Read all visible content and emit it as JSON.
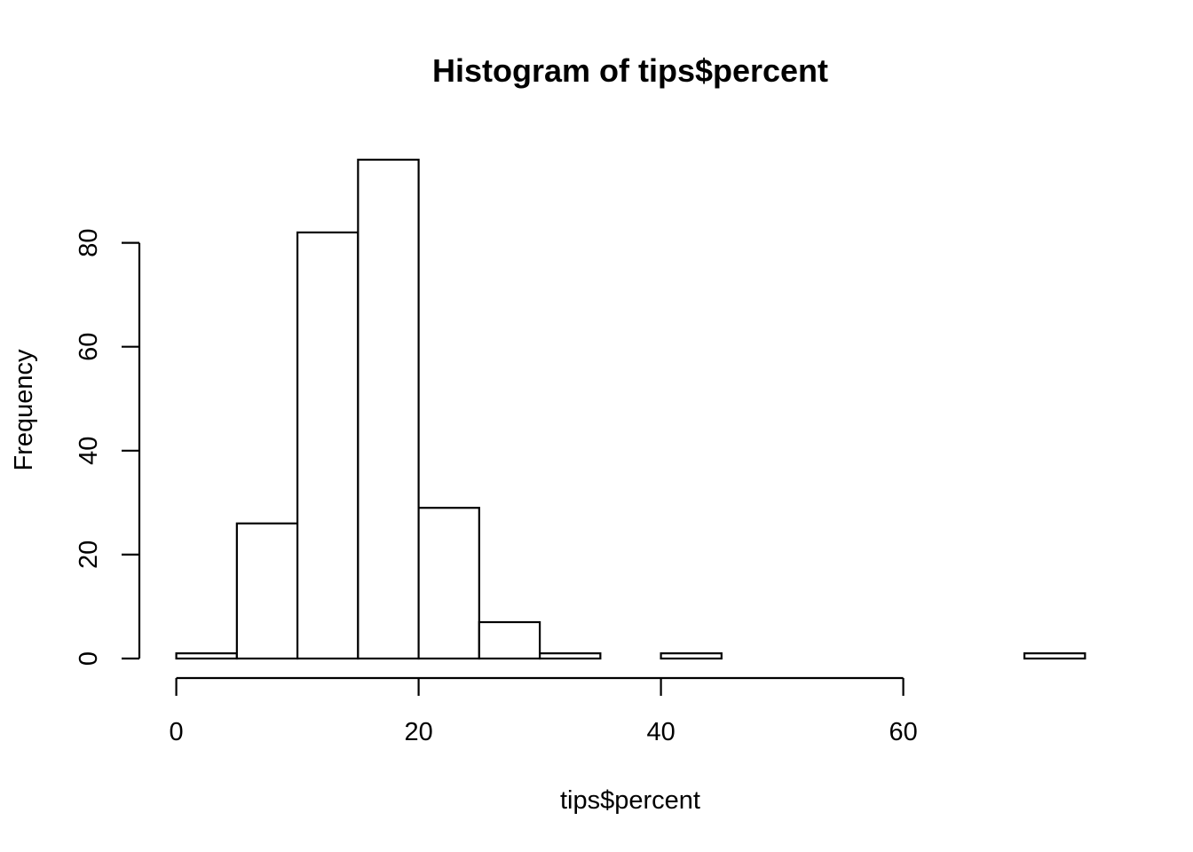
{
  "chart_data": {
    "type": "histogram",
    "title": "Histogram of tips$percent",
    "xlabel": "tips$percent",
    "ylabel": "Frequency",
    "bin_width": 5,
    "bins": [
      {
        "start": 0,
        "end": 5,
        "count": 1
      },
      {
        "start": 5,
        "end": 10,
        "count": 26
      },
      {
        "start": 10,
        "end": 15,
        "count": 82
      },
      {
        "start": 15,
        "end": 20,
        "count": 96
      },
      {
        "start": 20,
        "end": 25,
        "count": 29
      },
      {
        "start": 25,
        "end": 30,
        "count": 7
      },
      {
        "start": 30,
        "end": 35,
        "count": 1
      },
      {
        "start": 35,
        "end": 40,
        "count": 0
      },
      {
        "start": 40,
        "end": 45,
        "count": 1
      },
      {
        "start": 45,
        "end": 50,
        "count": 0
      },
      {
        "start": 50,
        "end": 55,
        "count": 0
      },
      {
        "start": 55,
        "end": 60,
        "count": 0
      },
      {
        "start": 60,
        "end": 65,
        "count": 0
      },
      {
        "start": 65,
        "end": 70,
        "count": 0
      },
      {
        "start": 70,
        "end": 75,
        "count": 1
      }
    ],
    "xlim": [
      0,
      75
    ],
    "ylim": [
      0,
      96
    ],
    "x_ticks": [
      0,
      20,
      40,
      60
    ],
    "y_ticks": [
      0,
      20,
      40,
      60,
      80
    ],
    "grid": false,
    "colors": {
      "bar_fill": "#ffffff",
      "bar_stroke": "#000000"
    }
  }
}
